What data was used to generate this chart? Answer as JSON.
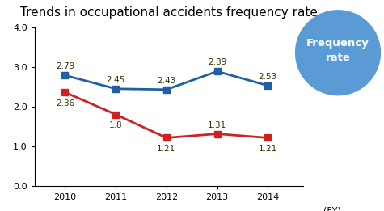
{
  "title": "Trends in occupational accidents frequency rate",
  "years": [
    2010,
    2011,
    2012,
    2013,
    2014
  ],
  "blue_values": [
    2.79,
    2.45,
    2.43,
    2.89,
    2.53
  ],
  "red_values": [
    2.36,
    1.8,
    1.21,
    1.31,
    1.21
  ],
  "blue_color": "#1f5fa6",
  "red_color": "#cc2222",
  "ylim": [
    0.0,
    4.0
  ],
  "yticks": [
    0.0,
    1.0,
    2.0,
    3.0,
    4.0
  ],
  "xlabel": "(FY)",
  "badge_text": "Frequency\nrate",
  "badge_color": "#5b9bd5",
  "title_fontsize": 11,
  "label_fontsize": 7.5,
  "axis_fontsize": 8,
  "marker": "s",
  "marker_size": 6,
  "line_width": 2.0,
  "blue_label_offsets": [
    0.12,
    0.12,
    0.12,
    0.12,
    0.12
  ],
  "red_label_offsets": [
    -0.18,
    -0.18,
    -0.18,
    0.12,
    -0.18
  ],
  "red_label_va": [
    "top",
    "top",
    "top",
    "bottom",
    "top"
  ]
}
